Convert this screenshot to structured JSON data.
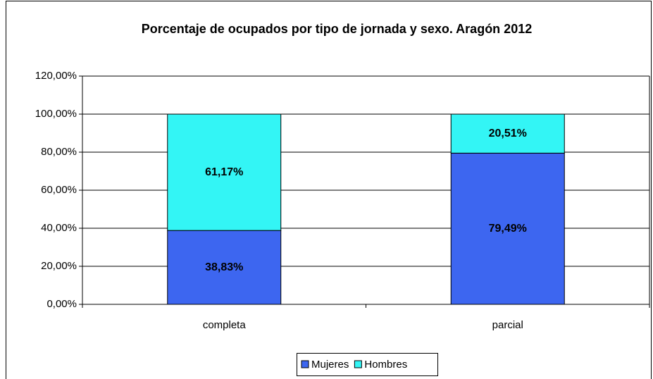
{
  "chart_data": {
    "type": "stacked_bar",
    "title": "Porcentaje de ocupados por tipo de jornada y sexo. Aragón 2012",
    "categories": [
      "completa",
      "parcial"
    ],
    "series": [
      {
        "name": "Mujeres",
        "color": "#3d66f0",
        "values": [
          38.83,
          79.49
        ],
        "value_labels": [
          "38,83%",
          "79,49%"
        ]
      },
      {
        "name": "Hombres",
        "color": "#33f5f5",
        "values": [
          61.17,
          20.51
        ],
        "value_labels": [
          "61,17%",
          "20,51%"
        ]
      }
    ],
    "ylim": [
      0,
      120
    ],
    "yticks": [
      {
        "value": 0,
        "label": "0,00%"
      },
      {
        "value": 20,
        "label": "20,00%"
      },
      {
        "value": 40,
        "label": "40,00%"
      },
      {
        "value": 60,
        "label": "60,00%"
      },
      {
        "value": 80,
        "label": "80,00%"
      },
      {
        "value": 100,
        "label": "100,00%"
      },
      {
        "value": 120,
        "label": "120,00%"
      }
    ],
    "grid": true,
    "legend": "bottom"
  }
}
